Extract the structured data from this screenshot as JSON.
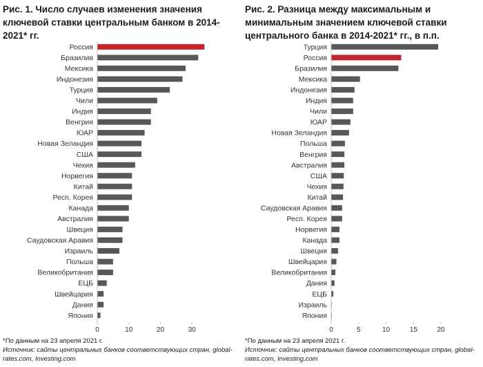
{
  "colors": {
    "bar": "#58585a",
    "highlight": "#c0282d",
    "axis": "#bfbfbf"
  },
  "panel1": {
    "title": "Рис. 1. Число случаев изменения значения ключевой ставки центральным банком в 2014-2021* гг.",
    "footnote": "*По данным на 23 апреля 2021 г.",
    "source": "Источник: сайты центральных банков соответствующих стран, global-rates.com, Investing.com"
  },
  "panel2": {
    "title": "Рис. 2. Разница между максимальным и минимальным значением ключевой ставки центрального банка в 2014-2021* гг., в п.п.",
    "footnote": "*По данным на 23 апреля 2021 г.",
    "source": "Источник: сайты центральных банков соответствующих стран, global-rates.com, Investing.com"
  },
  "chart_data": [
    {
      "type": "bar",
      "orientation": "horizontal",
      "title": "Рис. 1. Число случаев изменения значения ключевой ставки центральным банком в 2014-2021* гг.",
      "categories": [
        "Россия",
        "Бразилия",
        "Мексика",
        "Индонезия",
        "Турция",
        "Чили",
        "Индия",
        "Венгрия",
        "ЮАР",
        "Новая Зеландия",
        "США",
        "Чехия",
        "Норвегия",
        "Китай",
        "Респ. Корея",
        "Канада",
        "Австралия",
        "Швеция",
        "Саудовская Аравия",
        "Израиль",
        "Польша",
        "Великобритания",
        "ЕЦБ",
        "Швейцария",
        "Дания",
        "Япония"
      ],
      "values": [
        34,
        32,
        28,
        27,
        23,
        19,
        17,
        17,
        15,
        14,
        14,
        12,
        11,
        11,
        11,
        10,
        10,
        8,
        8,
        7,
        5,
        5,
        3,
        2,
        2,
        1
      ],
      "highlight": "Россия",
      "xlim": [
        0,
        35
      ],
      "xticks": [
        0,
        10,
        20,
        30
      ],
      "grid": false
    },
    {
      "type": "bar",
      "orientation": "horizontal",
      "title": "Рис. 2. Разница между максимальным и минимальным значением ключевой ставки центрального банка в 2014-2021* гг., в п.п.",
      "categories": [
        "Турция",
        "Россия",
        "Бразилия",
        "Мексика",
        "Индонезия",
        "Индия",
        "Чили",
        "ЮАР",
        "Новая Зеландия",
        "Польша",
        "Венгрия",
        "Австралия",
        "США",
        "Чехия",
        "Китай",
        "Саудовская Аравия",
        "Респ. Корея",
        "Норвегия",
        "Канада",
        "Швеция",
        "Швейцария",
        "Великобритания",
        "Дания",
        "ЕЦБ",
        "Израиль",
        "Япония"
      ],
      "values": [
        19.5,
        12.75,
        12.25,
        5.25,
        4.25,
        4.0,
        4.0,
        3.5,
        3.25,
        2.5,
        2.4,
        2.4,
        2.3,
        2.25,
        2.15,
        2.0,
        2.0,
        1.5,
        1.5,
        1.25,
        0.95,
        0.75,
        0.6,
        0.4,
        0.1,
        0.1
      ],
      "highlight": "Россия",
      "xlim": [
        0,
        21
      ],
      "xticks": [
        0,
        5,
        10,
        15,
        20
      ],
      "grid": false
    }
  ]
}
